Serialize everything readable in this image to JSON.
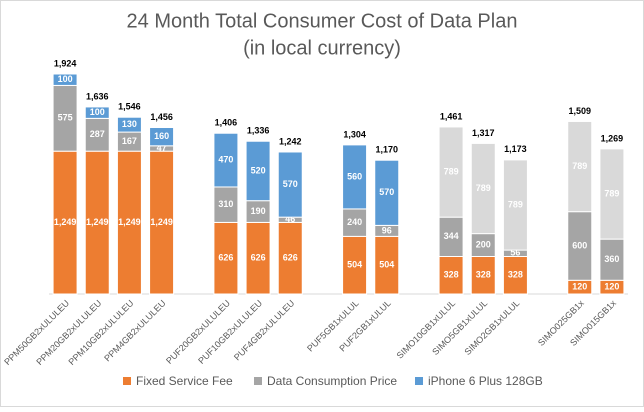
{
  "chart_data": {
    "type": "stacked_bar",
    "title": "24 Month Total Consumer Cost of Data Plan",
    "subtitle": "(in local currency)",
    "categories": [
      "PPM50GB2xULULEU",
      "PPM20GB2xULULEU",
      "PPM10GB2xULULEU",
      "PPM4GB2xULULEU",
      null,
      "PUF20GB2xULULEU",
      "PUF10GB2xULULEU",
      "PUF4GB2xULULEU",
      null,
      "PUF5GB1xULUL",
      "PUF2GB1xULUL",
      null,
      "SIMO10GB1xULUL",
      "SIMO5GB1xULUL",
      "SIMO2GB1xULUL",
      null,
      "SIMO025GB1x",
      "SIMO015GB1x"
    ],
    "series": [
      {
        "name": "Fixed Service Fee",
        "color": "#ed7d31",
        "values": [
          1249,
          1249,
          1249,
          1249,
          null,
          626,
          626,
          626,
          null,
          504,
          504,
          null,
          328,
          328,
          328,
          null,
          120,
          120
        ],
        "value_labels": [
          "1,249",
          "1,249",
          "1,249",
          "1,249",
          null,
          "626",
          "626",
          "626",
          null,
          "504",
          "504",
          null,
          "328",
          "328",
          "328",
          null,
          "120",
          "120"
        ]
      },
      {
        "name": "Data Consumption Price",
        "color": "#a5a5a5",
        "values": [
          575,
          287,
          167,
          47,
          null,
          310,
          190,
          46,
          null,
          240,
          96,
          null,
          344,
          200,
          56,
          null,
          600,
          360
        ]
      },
      {
        "name": "iPhone 6 Plus 128GB",
        "color": "#5b9bd5",
        "colors": [
          "#5b9bd5",
          "#5b9bd5",
          "#5b9bd5",
          "#5b9bd5",
          null,
          "#5b9bd5",
          "#5b9bd5",
          "#5b9bd5",
          null,
          "#5b9bd5",
          "#5b9bd5",
          null,
          "#d9d9d9",
          "#d9d9d9",
          "#d9d9d9",
          null,
          "#d9d9d9",
          "#d9d9d9"
        ],
        "values": [
          100,
          100,
          130,
          160,
          null,
          470,
          520,
          570,
          null,
          560,
          570,
          null,
          789,
          789,
          789,
          null,
          789,
          789
        ]
      }
    ],
    "totals": {
      "values": [
        1924,
        1636,
        1546,
        1456,
        null,
        1406,
        1336,
        1242,
        null,
        1304,
        1170,
        null,
        1461,
        1317,
        1173,
        null,
        1509,
        1269
      ],
      "value_labels": [
        "1,924",
        "1,636",
        "1,546",
        "1,456",
        null,
        "1,406",
        "1,336",
        "1,242",
        null,
        "1,304",
        "1,170",
        null,
        "1,461",
        "1,317",
        "1,173",
        null,
        "1,509",
        "1,269"
      ]
    },
    "legend": "bottom"
  }
}
